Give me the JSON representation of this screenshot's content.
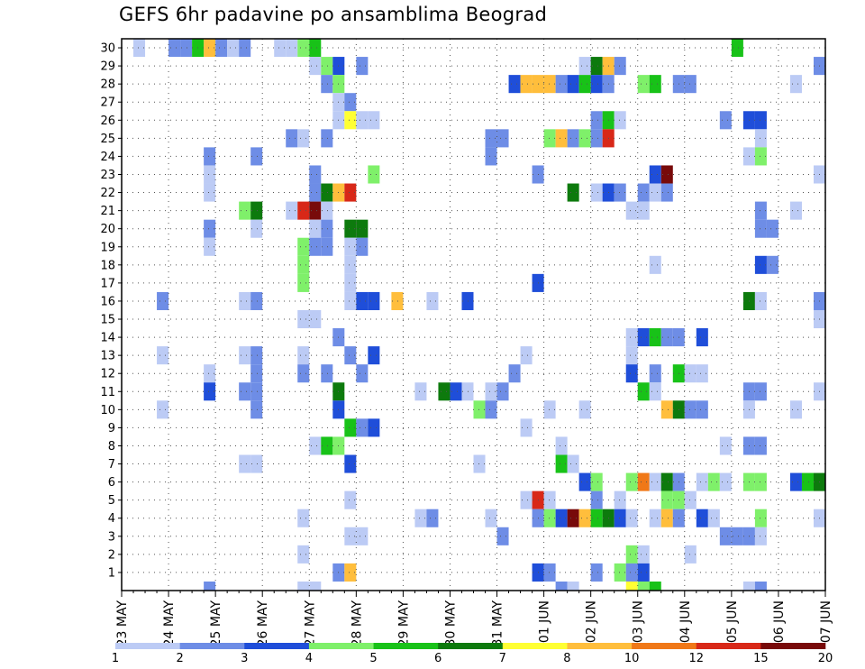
{
  "chart_data": {
    "type": "heatmap",
    "title": "GEFS 6hr padavine po ansamblima Beograd",
    "y_ticks": [
      "1",
      "2",
      "3",
      "4",
      "5",
      "6",
      "7",
      "8",
      "9",
      "10",
      "11",
      "12",
      "13",
      "14",
      "15",
      "16",
      "17",
      "18",
      "19",
      "20",
      "21",
      "22",
      "23",
      "24",
      "25",
      "26",
      "27",
      "28",
      "29",
      "30"
    ],
    "x_ticks": [
      "23 MAY",
      "24 MAY",
      "25 MAY",
      "26 MAY",
      "27 MAY",
      "28 MAY",
      "29 MAY",
      "30 MAY",
      "31 MAY",
      "01 JUN",
      "02 JUN",
      "03 JUN",
      "04 JUN",
      "05 JUN",
      "06 JUN",
      "07 JUN"
    ],
    "ylim": [
      0,
      30
    ],
    "grid": true,
    "colorbar": {
      "labels": [
        "1",
        "2",
        "3",
        "4",
        "5",
        "6",
        "7",
        "8",
        "10",
        "12",
        "15",
        "20"
      ],
      "colors": [
        "#bccbf5",
        "#6e8de6",
        "#1f4ed9",
        "#7ff06a",
        "#18c218",
        "#0d7a0d",
        "#ffff33",
        "#ffbe3c",
        "#f07818",
        "#d82818",
        "#780a0a"
      ]
    },
    "cells": [
      [
        30,
        1,
        1
      ],
      [
        30,
        4,
        2
      ],
      [
        30,
        5,
        2
      ],
      [
        30,
        6,
        5
      ],
      [
        30,
        7,
        8
      ],
      [
        30,
        8,
        2
      ],
      [
        30,
        9,
        1
      ],
      [
        30,
        10,
        2
      ],
      [
        30,
        13,
        1
      ],
      [
        30,
        14,
        1
      ],
      [
        30,
        15,
        4
      ],
      [
        30,
        16,
        5
      ],
      [
        30,
        52,
        5
      ],
      [
        29,
        16,
        1
      ],
      [
        29,
        17,
        4
      ],
      [
        29,
        18,
        3
      ],
      [
        29,
        20,
        2
      ],
      [
        29,
        39,
        1
      ],
      [
        29,
        40,
        6
      ],
      [
        29,
        41,
        8
      ],
      [
        29,
        42,
        2
      ],
      [
        29,
        59,
        2
      ],
      [
        28,
        17,
        2
      ],
      [
        28,
        18,
        4
      ],
      [
        28,
        33,
        3
      ],
      [
        28,
        34,
        8
      ],
      [
        28,
        35,
        8
      ],
      [
        28,
        36,
        8
      ],
      [
        28,
        37,
        2
      ],
      [
        28,
        38,
        3
      ],
      [
        28,
        39,
        5
      ],
      [
        28,
        40,
        3
      ],
      [
        28,
        41,
        2
      ],
      [
        28,
        44,
        4
      ],
      [
        28,
        45,
        5
      ],
      [
        28,
        47,
        2
      ],
      [
        28,
        48,
        2
      ],
      [
        28,
        57,
        1
      ],
      [
        27,
        18,
        1
      ],
      [
        27,
        19,
        2
      ],
      [
        26,
        18,
        1
      ],
      [
        26,
        19,
        7
      ],
      [
        26,
        20,
        1
      ],
      [
        26,
        21,
        1
      ],
      [
        26,
        40,
        2
      ],
      [
        26,
        41,
        5
      ],
      [
        26,
        42,
        1
      ],
      [
        26,
        51,
        2
      ],
      [
        26,
        53,
        3
      ],
      [
        26,
        54,
        3
      ],
      [
        25,
        14,
        2
      ],
      [
        25,
        15,
        1
      ],
      [
        25,
        17,
        2
      ],
      [
        25,
        31,
        2
      ],
      [
        25,
        32,
        2
      ],
      [
        25,
        36,
        4
      ],
      [
        25,
        37,
        8
      ],
      [
        25,
        38,
        2
      ],
      [
        25,
        39,
        4
      ],
      [
        25,
        40,
        2
      ],
      [
        25,
        41,
        10
      ],
      [
        25,
        54,
        1
      ],
      [
        24,
        7,
        2
      ],
      [
        24,
        11,
        2
      ],
      [
        24,
        31,
        2
      ],
      [
        24,
        53,
        1
      ],
      [
        24,
        54,
        4
      ],
      [
        23,
        7,
        1
      ],
      [
        23,
        16,
        2
      ],
      [
        23,
        21,
        4
      ],
      [
        23,
        35,
        2
      ],
      [
        23,
        45,
        3
      ],
      [
        23,
        46,
        11
      ],
      [
        23,
        59,
        1
      ],
      [
        22,
        7,
        1
      ],
      [
        22,
        16,
        2
      ],
      [
        22,
        17,
        6
      ],
      [
        22,
        18,
        8
      ],
      [
        22,
        19,
        10
      ],
      [
        22,
        38,
        6
      ],
      [
        22,
        40,
        1
      ],
      [
        22,
        41,
        3
      ],
      [
        22,
        42,
        2
      ],
      [
        22,
        44,
        2
      ],
      [
        22,
        45,
        1
      ],
      [
        22,
        46,
        2
      ],
      [
        21,
        10,
        4
      ],
      [
        21,
        11,
        6
      ],
      [
        21,
        14,
        1
      ],
      [
        21,
        15,
        10
      ],
      [
        21,
        16,
        11
      ],
      [
        21,
        17,
        1
      ],
      [
        21,
        43,
        1
      ],
      [
        21,
        44,
        1
      ],
      [
        21,
        54,
        2
      ],
      [
        21,
        57,
        1
      ],
      [
        20,
        7,
        2
      ],
      [
        20,
        11,
        1
      ],
      [
        20,
        16,
        1
      ],
      [
        20,
        17,
        2
      ],
      [
        20,
        19,
        6
      ],
      [
        20,
        20,
        6
      ],
      [
        20,
        54,
        2
      ],
      [
        20,
        55,
        2
      ],
      [
        19,
        7,
        1
      ],
      [
        19,
        15,
        4
      ],
      [
        19,
        16,
        2
      ],
      [
        19,
        17,
        2
      ],
      [
        19,
        19,
        1
      ],
      [
        19,
        20,
        2
      ],
      [
        18,
        15,
        4
      ],
      [
        18,
        19,
        1
      ],
      [
        18,
        45,
        1
      ],
      [
        18,
        54,
        3
      ],
      [
        18,
        55,
        2
      ],
      [
        17,
        15,
        4
      ],
      [
        17,
        19,
        1
      ],
      [
        17,
        35,
        3
      ],
      [
        16,
        3,
        2
      ],
      [
        16,
        10,
        1
      ],
      [
        16,
        11,
        2
      ],
      [
        16,
        19,
        1
      ],
      [
        16,
        20,
        3
      ],
      [
        16,
        21,
        3
      ],
      [
        16,
        23,
        8
      ],
      [
        16,
        26,
        1
      ],
      [
        16,
        29,
        3
      ],
      [
        16,
        53,
        6
      ],
      [
        16,
        54,
        1
      ],
      [
        16,
        59,
        2
      ],
      [
        15,
        15,
        1
      ],
      [
        15,
        16,
        1
      ],
      [
        15,
        59,
        1
      ],
      [
        14,
        18,
        2
      ],
      [
        14,
        43,
        1
      ],
      [
        14,
        44,
        3
      ],
      [
        14,
        45,
        5
      ],
      [
        14,
        46,
        2
      ],
      [
        14,
        47,
        2
      ],
      [
        14,
        49,
        3
      ],
      [
        13,
        3,
        1
      ],
      [
        13,
        10,
        1
      ],
      [
        13,
        11,
        2
      ],
      [
        13,
        15,
        1
      ],
      [
        13,
        19,
        2
      ],
      [
        13,
        21,
        3
      ],
      [
        13,
        34,
        1
      ],
      [
        13,
        43,
        1
      ],
      [
        12,
        7,
        1
      ],
      [
        12,
        11,
        2
      ],
      [
        12,
        15,
        2
      ],
      [
        12,
        17,
        2
      ],
      [
        12,
        20,
        2
      ],
      [
        12,
        33,
        2
      ],
      [
        12,
        43,
        3
      ],
      [
        12,
        45,
        2
      ],
      [
        12,
        47,
        5
      ],
      [
        12,
        48,
        1
      ],
      [
        12,
        49,
        1
      ],
      [
        11,
        7,
        3
      ],
      [
        11,
        10,
        2
      ],
      [
        11,
        11,
        2
      ],
      [
        11,
        18,
        6
      ],
      [
        11,
        25,
        1
      ],
      [
        11,
        27,
        6
      ],
      [
        11,
        28,
        3
      ],
      [
        11,
        29,
        1
      ],
      [
        11,
        31,
        1
      ],
      [
        11,
        32,
        2
      ],
      [
        11,
        44,
        5
      ],
      [
        11,
        45,
        1
      ],
      [
        11,
        53,
        2
      ],
      [
        11,
        54,
        2
      ],
      [
        11,
        59,
        1
      ],
      [
        10,
        3,
        1
      ],
      [
        10,
        11,
        2
      ],
      [
        10,
        18,
        3
      ],
      [
        10,
        30,
        4
      ],
      [
        10,
        31,
        2
      ],
      [
        10,
        36,
        1
      ],
      [
        10,
        39,
        1
      ],
      [
        10,
        46,
        8
      ],
      [
        10,
        47,
        6
      ],
      [
        10,
        48,
        2
      ],
      [
        10,
        49,
        2
      ],
      [
        10,
        53,
        1
      ],
      [
        10,
        57,
        1
      ],
      [
        9,
        19,
        5
      ],
      [
        9,
        20,
        2
      ],
      [
        9,
        21,
        3
      ],
      [
        9,
        34,
        1
      ],
      [
        8,
        16,
        1
      ],
      [
        8,
        17,
        5
      ],
      [
        8,
        18,
        4
      ],
      [
        8,
        37,
        1
      ],
      [
        8,
        51,
        1
      ],
      [
        8,
        53,
        2
      ],
      [
        8,
        54,
        2
      ],
      [
        7,
        10,
        1
      ],
      [
        7,
        11,
        1
      ],
      [
        7,
        19,
        3
      ],
      [
        7,
        30,
        1
      ],
      [
        7,
        37,
        5
      ],
      [
        7,
        38,
        1
      ],
      [
        6,
        39,
        3
      ],
      [
        6,
        40,
        4
      ],
      [
        6,
        43,
        4
      ],
      [
        6,
        44,
        9
      ],
      [
        6,
        45,
        1
      ],
      [
        6,
        46,
        6
      ],
      [
        6,
        47,
        2
      ],
      [
        6,
        49,
        1
      ],
      [
        6,
        50,
        4
      ],
      [
        6,
        51,
        1
      ],
      [
        6,
        53,
        4
      ],
      [
        6,
        54,
        4
      ],
      [
        6,
        57,
        3
      ],
      [
        6,
        58,
        5
      ],
      [
        6,
        59,
        6
      ],
      [
        5,
        19,
        1
      ],
      [
        5,
        34,
        1
      ],
      [
        5,
        35,
        10
      ],
      [
        5,
        36,
        1
      ],
      [
        5,
        40,
        2
      ],
      [
        5,
        42,
        1
      ],
      [
        5,
        46,
        4
      ],
      [
        5,
        47,
        4
      ],
      [
        5,
        48,
        1
      ],
      [
        4,
        15,
        1
      ],
      [
        4,
        25,
        1
      ],
      [
        4,
        26,
        2
      ],
      [
        4,
        31,
        1
      ],
      [
        4,
        35,
        2
      ],
      [
        4,
        36,
        4
      ],
      [
        4,
        37,
        3
      ],
      [
        4,
        38,
        11
      ],
      [
        4,
        39,
        8
      ],
      [
        4,
        40,
        5
      ],
      [
        4,
        41,
        6
      ],
      [
        4,
        42,
        3
      ],
      [
        4,
        43,
        1
      ],
      [
        4,
        45,
        1
      ],
      [
        4,
        46,
        8
      ],
      [
        4,
        47,
        2
      ],
      [
        4,
        49,
        3
      ],
      [
        4,
        50,
        1
      ],
      [
        4,
        54,
        4
      ],
      [
        4,
        59,
        1
      ],
      [
        3,
        19,
        1
      ],
      [
        3,
        20,
        1
      ],
      [
        3,
        32,
        2
      ],
      [
        3,
        51,
        2
      ],
      [
        3,
        52,
        2
      ],
      [
        3,
        53,
        2
      ],
      [
        3,
        54,
        1
      ],
      [
        2,
        15,
        1
      ],
      [
        2,
        43,
        4
      ],
      [
        2,
        44,
        1
      ],
      [
        2,
        48,
        1
      ],
      [
        1,
        18,
        2
      ],
      [
        1,
        19,
        8
      ],
      [
        1,
        35,
        3
      ],
      [
        1,
        36,
        2
      ],
      [
        1,
        40,
        2
      ],
      [
        1,
        42,
        4
      ],
      [
        1,
        43,
        2
      ],
      [
        1,
        44,
        3
      ],
      [
        0,
        7,
        2
      ],
      [
        0,
        15,
        1
      ],
      [
        0,
        16,
        1
      ],
      [
        0,
        37,
        2
      ],
      [
        0,
        38,
        1
      ],
      [
        0,
        43,
        7
      ],
      [
        0,
        44,
        4
      ],
      [
        0,
        45,
        5
      ],
      [
        0,
        53,
        1
      ],
      [
        0,
        54,
        2
      ]
    ]
  }
}
